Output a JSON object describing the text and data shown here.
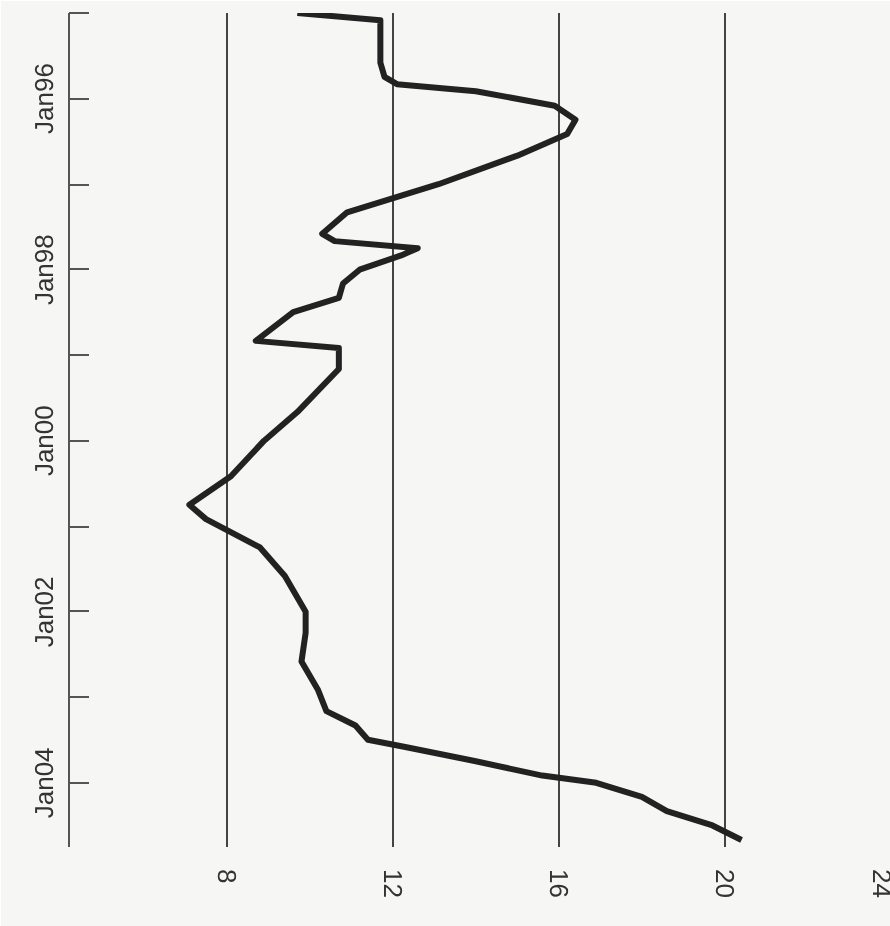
{
  "chart_data": {
    "type": "line",
    "orientation": "horizontal",
    "grid": "x",
    "marker": "none",
    "line_style": "solid",
    "x": [
      "1995-01",
      "1995-02",
      "1995-05",
      "1995-08",
      "1995-10",
      "1995-11",
      "1995-12",
      "1996-02",
      "1996-04",
      "1996-06",
      "1996-09",
      "1997-01",
      "1997-05",
      "1997-08",
      "1997-09",
      "1997-10",
      "1997-11",
      "1998-01",
      "1998-03",
      "1998-05",
      "1998-07",
      "1998-11",
      "1998-12",
      "1999-03",
      "1999-09",
      "2000-01",
      "2000-06",
      "2000-10",
      "2000-12",
      "2001-04",
      "2001-08",
      "2002-01",
      "2002-04",
      "2002-08",
      "2002-12",
      "2003-03",
      "2003-05",
      "2003-07",
      "2003-08",
      "2003-10",
      "2003-12",
      "2004-01",
      "2004-03",
      "2004-05",
      "2004-07",
      "2004-09"
    ],
    "series": [
      {
        "color": "#222222",
        "values": [
          9.7,
          11.7,
          11.7,
          11.7,
          11.8,
          12.1,
          14.0,
          15.9,
          16.4,
          16.2,
          15.0,
          13.1,
          10.9,
          10.3,
          10.6,
          12.6,
          12.2,
          11.2,
          10.8,
          10.7,
          9.6,
          8.7,
          10.7,
          10.7,
          9.7,
          8.9,
          8.1,
          7.1,
          7.5,
          8.8,
          9.4,
          9.9,
          9.9,
          9.8,
          10.2,
          10.4,
          11.1,
          11.4,
          12.3,
          14.0,
          15.6,
          16.9,
          18.0,
          18.6,
          19.7,
          20.4
        ]
      }
    ],
    "xlim": [
      4.2,
      24
    ],
    "xticks": [
      8,
      12,
      16,
      20,
      24
    ],
    "ylim": [
      "2004-10",
      "1995-01"
    ],
    "yticks": [
      {
        "value": "1995-01",
        "label": null
      },
      {
        "value": "1996-01",
        "label": "Jan96"
      },
      {
        "value": "1997-01",
        "label": null
      },
      {
        "value": "1998-01",
        "label": "Jan98"
      },
      {
        "value": "1999-01",
        "label": null
      },
      {
        "value": "2000-01",
        "label": "Jan00"
      },
      {
        "value": "2001-01",
        "label": null
      },
      {
        "value": "2002-01",
        "label": "Jan02"
      },
      {
        "value": "2003-01",
        "label": null
      },
      {
        "value": "2004-01",
        "label": "Jan04"
      }
    ]
  }
}
